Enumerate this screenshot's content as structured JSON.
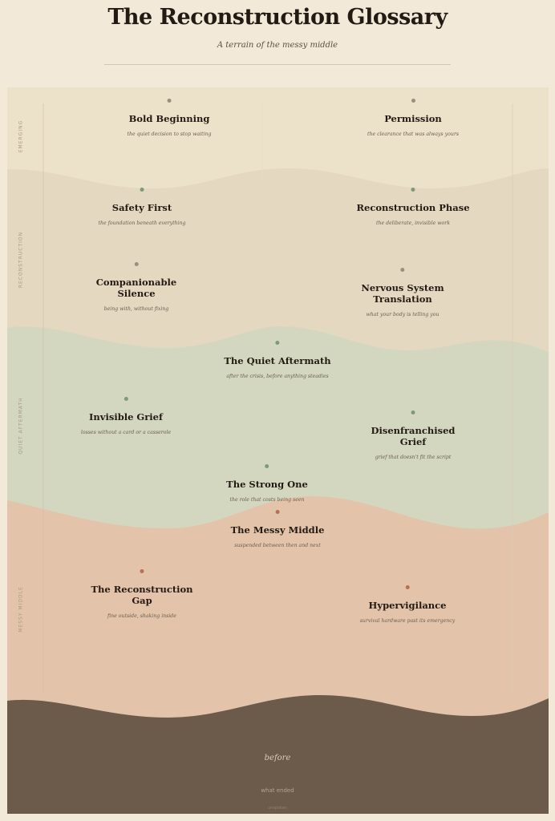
{
  "header": {
    "title": "The Reconstruction Glossary",
    "subtitle": "A terrain of the messy middle"
  },
  "colors": {
    "page": "#f2e9d8",
    "emerging": "#ece1c9",
    "reconstruction": "#e4d8c1",
    "quiet_aftermath": "#d3d7bf",
    "messy_middle": "#e3c4aa",
    "before": "#6c5b4b",
    "dot_neutral": "#9a8f7c",
    "dot_green": "#7c9a7a",
    "dot_terracotta": "#b96e56"
  },
  "layers": [
    {
      "label": "Emerging"
    },
    {
      "label": "Reconstruction"
    },
    {
      "label": "Quiet Aftermath"
    },
    {
      "label": "Messy Middle"
    }
  ],
  "terms": [
    {
      "name": "Bold Beginning",
      "desc": "the quiet decision to stop waiting",
      "dot": "neutral"
    },
    {
      "name": "Permission",
      "desc": "the clearance that was always yours",
      "dot": "neutral"
    },
    {
      "name": "Safety First",
      "desc": "the foundation beneath everything",
      "dot": "green"
    },
    {
      "name": "Reconstruction Phase",
      "desc": "the deliberate, invisible work",
      "dot": "green"
    },
    {
      "name": "Companionable\nSilence",
      "desc": "being with, without fixing",
      "dot": "neutral"
    },
    {
      "name": "Nervous System\nTranslation",
      "desc": "what your body is telling you",
      "dot": "neutral"
    },
    {
      "name": "The Quiet Aftermath",
      "desc": "after the crisis, before anything steadies",
      "dot": "green"
    },
    {
      "name": "Invisible Grief",
      "desc": "losses without a card or a casserole",
      "dot": "green"
    },
    {
      "name": "Disenfranchised\nGrief",
      "desc": "grief that doesn't fit the script",
      "dot": "green"
    },
    {
      "name": "The Strong One",
      "desc": "the role that costs being seen",
      "dot": "green"
    },
    {
      "name": "The Messy Middle",
      "desc": "suspended between then and next",
      "dot": "terracotta"
    },
    {
      "name": "The Reconstruction\nGap",
      "desc": "fine outside, shaking inside",
      "dot": "terracotta"
    },
    {
      "name": "Hypervigilance",
      "desc": "survival hardware past its emergency",
      "dot": "terracotta"
    }
  ],
  "base": {
    "before": "before",
    "what_ended": "what ended",
    "unspoken": "unspoken"
  }
}
